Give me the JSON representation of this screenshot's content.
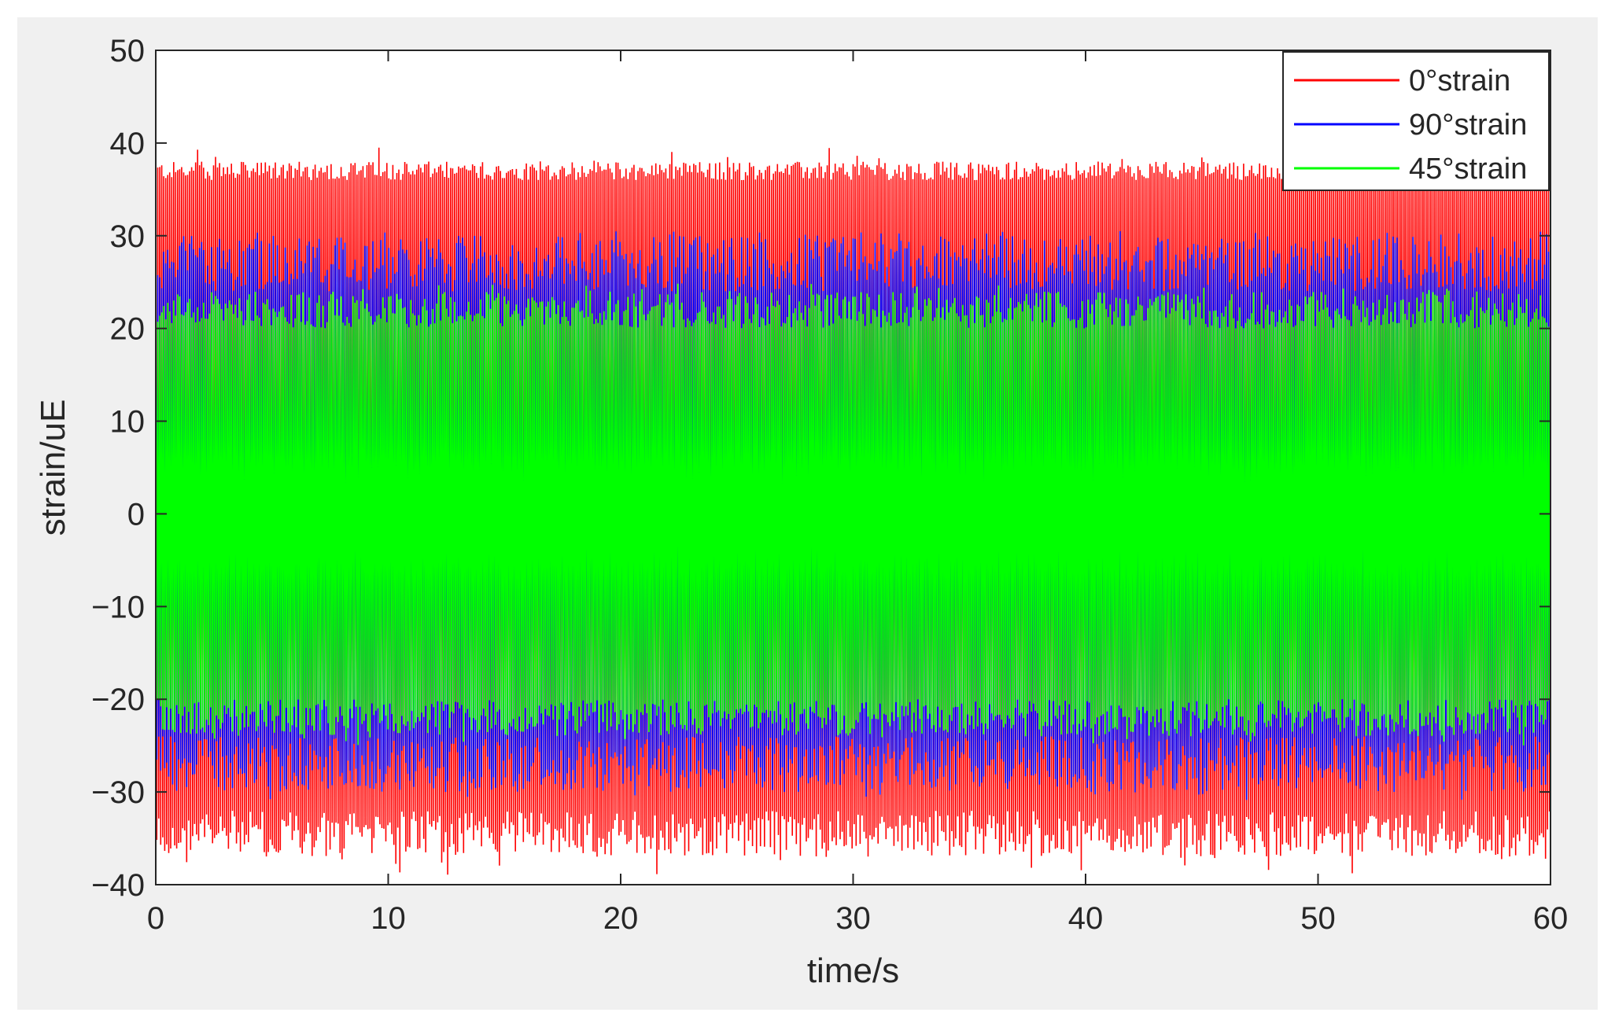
{
  "chart_data": {
    "type": "line",
    "title": "",
    "xlabel": "time/s",
    "ylabel": "strain/uE",
    "xlim": [
      0,
      60
    ],
    "ylim": [
      -40,
      50
    ],
    "xticks": [
      0,
      10,
      20,
      30,
      40,
      50,
      60
    ],
    "yticks": [
      -40,
      -30,
      -20,
      -10,
      0,
      10,
      20,
      30,
      40,
      50
    ],
    "ytick_labels": [
      "−40",
      "−30",
      "−20",
      "−10",
      "0",
      "10",
      "20",
      "30",
      "40",
      "50"
    ],
    "grid": false,
    "legend_position": "top-right",
    "series": [
      {
        "name": "0°strain",
        "color": "#ff0000",
        "peak_max": 40,
        "peak_min": -39,
        "envelope_upper": [
          36,
          38
        ],
        "envelope_lower": [
          -32,
          -37
        ]
      },
      {
        "name": "90°strain",
        "color": "#0000ff",
        "peak_max": 30.5,
        "peak_min": -31,
        "envelope_upper": [
          24,
          30
        ],
        "envelope_lower": [
          -24,
          -30
        ]
      },
      {
        "name": "45°strain",
        "color": "#00ff00",
        "peak_max": 25,
        "peak_min": -25,
        "envelope_upper": [
          20,
          24
        ],
        "envelope_lower": [
          -20,
          -24
        ]
      }
    ]
  }
}
